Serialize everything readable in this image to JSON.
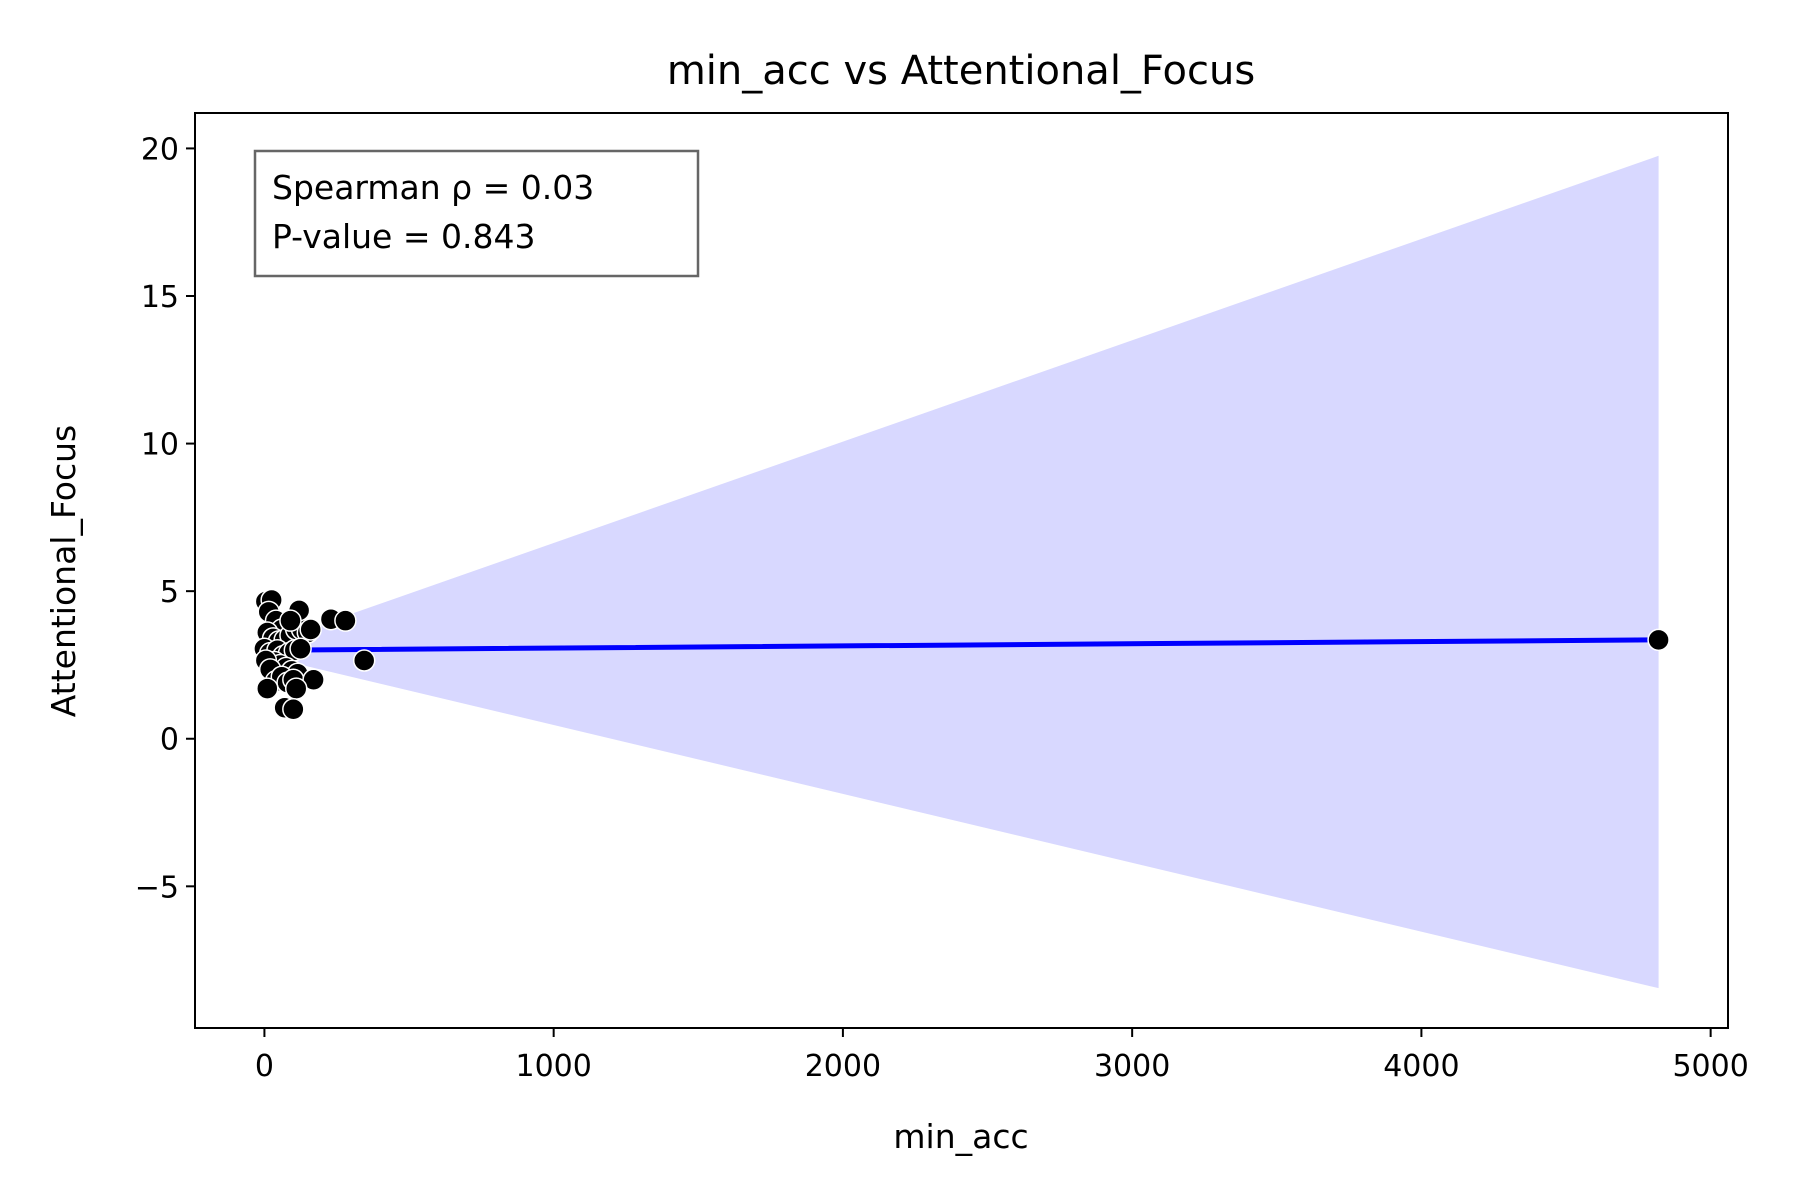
{
  "chart_data": {
    "type": "scatter",
    "title": "min_acc vs Attentional_Focus",
    "xlabel": "min_acc",
    "ylabel": "Attentional_Focus",
    "xlim": [
      -240,
      5060
    ],
    "ylim": [
      -9.8,
      21.2
    ],
    "xticks": [
      0,
      1000,
      2000,
      3000,
      4000,
      5000
    ],
    "xtick_labels": [
      "0",
      "1000",
      "2000",
      "3000",
      "4000",
      "5000"
    ],
    "yticks": [
      20,
      15,
      10,
      5,
      0,
      -5
    ],
    "ytick_labels": [
      "20",
      "15",
      "10",
      "5",
      "0",
      "−5"
    ],
    "grid": false,
    "annotation": {
      "lines": [
        "Spearman ρ = 0.03",
        "P-value = 0.843"
      ],
      "position": "top-left"
    },
    "series": [
      {
        "kind": "points",
        "color": "#000000",
        "edge_color": "#ffffff",
        "points": [
          [
            5,
            4.65
          ],
          [
            25,
            4.7
          ],
          [
            15,
            4.3
          ],
          [
            40,
            4.0
          ],
          [
            60,
            3.7
          ],
          [
            10,
            3.6
          ],
          [
            30,
            3.4
          ],
          [
            50,
            3.3
          ],
          [
            70,
            3.35
          ],
          [
            90,
            3.5
          ],
          [
            110,
            3.7
          ],
          [
            130,
            3.7
          ],
          [
            150,
            3.6
          ],
          [
            0,
            3.05
          ],
          [
            20,
            2.9
          ],
          [
            45,
            3.0
          ],
          [
            65,
            2.8
          ],
          [
            85,
            2.9
          ],
          [
            105,
            3.0
          ],
          [
            125,
            3.05
          ],
          [
            35,
            2.6
          ],
          [
            55,
            2.5
          ],
          [
            75,
            2.4
          ],
          [
            95,
            2.3
          ],
          [
            115,
            2.2
          ],
          [
            5,
            2.65
          ],
          [
            20,
            2.35
          ],
          [
            40,
            1.95
          ],
          [
            60,
            2.1
          ],
          [
            80,
            1.9
          ],
          [
            100,
            2.0
          ],
          [
            170,
            2.0
          ],
          [
            10,
            1.7
          ],
          [
            110,
            1.7
          ],
          [
            70,
            1.05
          ],
          [
            100,
            1.0
          ],
          [
            120,
            4.35
          ],
          [
            90,
            4.0
          ],
          [
            230,
            4.05
          ],
          [
            280,
            4.0
          ],
          [
            160,
            3.7
          ],
          [
            345,
            2.65
          ],
          [
            4820,
            3.35
          ]
        ]
      },
      {
        "kind": "regression_line",
        "color": "#0000ff",
        "x": [
          0,
          4820
        ],
        "y": [
          3.0,
          3.35
        ]
      },
      {
        "kind": "confidence_band",
        "color": "#d8d8ff",
        "x": [
          0,
          4820
        ],
        "upper": [
          3.2,
          19.75
        ],
        "lower": [
          2.8,
          -8.45
        ]
      }
    ]
  }
}
